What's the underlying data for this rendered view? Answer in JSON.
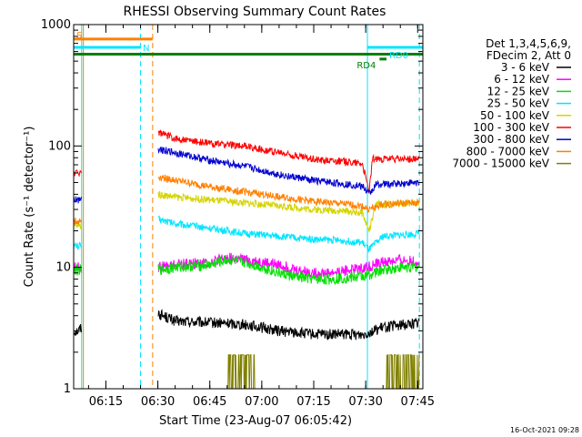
{
  "chart_data": {
    "type": "line",
    "title": "RHESSI Observing Summary Count Rates",
    "xlabel": "Start Time (23-Aug-07 06:05:42)",
    "ylabel": "Count Rate (s⁻¹ detector⁻¹)",
    "y_scale": "log",
    "ylim": [
      1,
      1000
    ],
    "xlim": [
      "06:05:42",
      "07:46:30"
    ],
    "x_ticks": [
      "06:15",
      "06:30",
      "06:45",
      "07:00",
      "07:15",
      "07:30",
      "07:45"
    ],
    "y_ticks": [
      "1",
      "10",
      "100",
      "1000"
    ],
    "legend_header": [
      "Det 1,3,4,5,6,9,",
      "FDecim 2, Att 0"
    ],
    "legend_position": "right",
    "timestamp": "16-Oct-2021 09:28",
    "flags": [
      {
        "label": "S",
        "color": "#ff8000",
        "start": "06:05:42",
        "end": "06:28:30"
      },
      {
        "label": "N",
        "color": "#00e5ff",
        "start": "06:05:42",
        "end": "06:25:00"
      },
      {
        "label": "RD0",
        "color": "#00e5ff",
        "start": "07:30:30",
        "end": "07:46:30"
      },
      {
        "label": "RD4",
        "color": "#008000",
        "start": "07:34:00",
        "end": "07:36:00"
      }
    ],
    "saa_level": 570,
    "vertical_markers": [
      {
        "time": "06:08:00",
        "color": "#00e5ff",
        "style": "solid"
      },
      {
        "time": "06:08:30",
        "color": "#ff8000",
        "style": "solid"
      },
      {
        "time": "06:25:00",
        "color": "#00e5ff",
        "style": "dashed"
      },
      {
        "time": "06:28:30",
        "color": "#ff8000",
        "style": "dashed"
      },
      {
        "time": "07:30:30",
        "color": "#00e5ff",
        "style": "solid"
      },
      {
        "time": "07:45:30",
        "color": "#00e5ff",
        "style": "dashed"
      }
    ],
    "series": [
      {
        "name": "3 - 6 keV",
        "color": "#000000",
        "x": [
          "06:05:42",
          "06:07:00",
          "06:08:00",
          "06:30:00",
          "06:35:00",
          "06:45:00",
          "06:55:00",
          "07:05:00",
          "07:15:00",
          "07:25:00",
          "07:29:00",
          "07:35:00",
          "07:45:30"
        ],
        "values": [
          3.0,
          3.0,
          3.2,
          4.2,
          3.6,
          3.5,
          3.4,
          3.0,
          2.8,
          2.8,
          2.8,
          3.2,
          3.5
        ]
      },
      {
        "name": "6 - 12 keV",
        "color": "#ff00ff",
        "x": [
          "06:05:42",
          "06:07:00",
          "06:08:00",
          "06:30:00",
          "06:35:00",
          "06:45:00",
          "06:50:00",
          "06:55:00",
          "07:00:00",
          "07:05:00",
          "07:10:00",
          "07:15:00",
          "07:20:00",
          "07:25:00",
          "07:30:00",
          "07:35:00",
          "07:40:00",
          "07:45:30"
        ],
        "values": [
          10,
          10,
          10,
          10,
          10.5,
          11,
          12,
          11.5,
          11,
          10.5,
          9.5,
          9,
          9,
          9.5,
          10,
          11,
          11.5,
          11
        ]
      },
      {
        "name": "12 - 25 keV",
        "color": "#00e000",
        "x": [
          "06:05:42",
          "06:07:00",
          "06:08:00",
          "06:30:00",
          "06:35:00",
          "06:45:00",
          "06:50:00",
          "06:55:00",
          "07:00:00",
          "07:05:00",
          "07:10:00",
          "07:15:00",
          "07:20:00",
          "07:25:00",
          "07:30:00",
          "07:35:00",
          "07:40:00",
          "07:45:30"
        ],
        "values": [
          9.5,
          9.5,
          9.5,
          9.5,
          10,
          10.5,
          11.5,
          11,
          10,
          9,
          8.3,
          8,
          8,
          8.2,
          8.5,
          9.5,
          10,
          10
        ]
      },
      {
        "name": "25 - 50 keV",
        "color": "#00e5ff",
        "x": [
          "06:05:42",
          "06:07:00",
          "06:08:00",
          "06:30:00",
          "06:35:00",
          "06:45:00",
          "06:55:00",
          "07:05:00",
          "07:15:00",
          "07:25:00",
          "07:29:00",
          "07:31:00",
          "07:35:00",
          "07:45:30"
        ],
        "values": [
          15,
          15,
          15,
          25,
          23,
          21,
          19,
          18,
          17,
          16.5,
          16,
          14,
          18,
          19
        ]
      },
      {
        "name": "50 - 100 keV",
        "color": "#d4d400",
        "x": [
          "06:05:42",
          "06:07:00",
          "06:08:00",
          "06:30:00",
          "06:35:00",
          "06:45:00",
          "06:55:00",
          "07:05:00",
          "07:15:00",
          "07:25:00",
          "07:29:00",
          "07:31:00",
          "07:33:00",
          "07:45:30"
        ],
        "values": [
          22,
          22,
          22,
          40,
          38,
          36,
          34,
          32,
          30,
          29,
          28,
          20,
          33,
          34
        ]
      },
      {
        "name": "100 - 300 keV",
        "color": "#ff0000",
        "x": [
          "06:05:42",
          "06:07:00",
          "06:08:00",
          "06:30:00",
          "06:35:00",
          "06:45:00",
          "06:55:00",
          "07:05:00",
          "07:15:00",
          "07:25:00",
          "07:29:00",
          "07:31:00",
          "07:32:00",
          "07:45:30"
        ],
        "values": [
          60,
          60,
          62,
          130,
          115,
          105,
          100,
          88,
          78,
          74,
          72,
          42,
          78,
          78
        ]
      },
      {
        "name": "300 - 800 keV",
        "color": "#0000d0",
        "x": [
          "06:05:42",
          "06:07:00",
          "06:08:00",
          "06:30:00",
          "06:35:00",
          "06:45:00",
          "06:55:00",
          "07:05:00",
          "07:15:00",
          "07:25:00",
          "07:29:00",
          "07:31:00",
          "07:33:00",
          "07:45:30"
        ],
        "values": [
          36,
          36,
          38,
          95,
          88,
          76,
          68,
          58,
          52,
          48,
          47,
          40,
          48,
          50
        ]
      },
      {
        "name": "800 - 7000 keV",
        "color": "#ff8000",
        "x": [
          "06:05:42",
          "06:07:00",
          "06:08:00",
          "06:30:00",
          "06:35:00",
          "06:45:00",
          "06:55:00",
          "07:05:00",
          "07:15:00",
          "07:25:00",
          "07:29:00",
          "07:31:00",
          "07:35:00",
          "07:45:30"
        ],
        "values": [
          24,
          24,
          24,
          56,
          52,
          46,
          42,
          38,
          35,
          33,
          32,
          30,
          33,
          34
        ]
      },
      {
        "name": "7000 - 15000 keV",
        "color": "#808000",
        "x": [
          "06:05:42",
          "06:07:00",
          "06:08:00",
          "06:50:00",
          "06:55:00",
          "07:36:00",
          "07:45:30"
        ],
        "values": [
          1,
          1,
          1,
          1,
          1.9,
          1,
          1.9
        ]
      }
    ]
  }
}
